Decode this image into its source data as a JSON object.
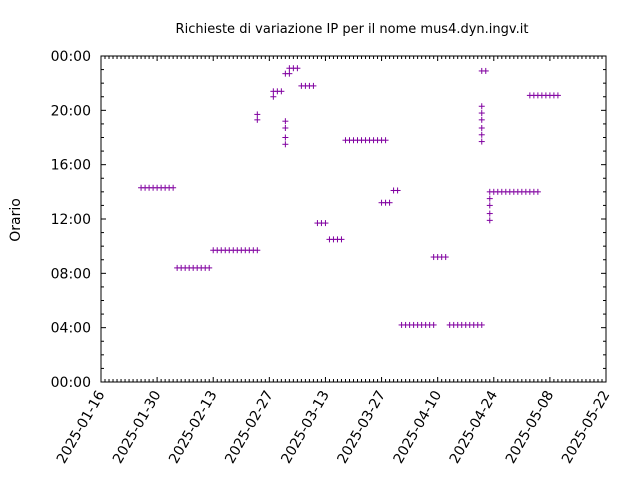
{
  "chart_data": {
    "type": "scatter",
    "title": "Richieste di variazione IP per il nome mus4.dyn.ingv.it",
    "ylabel": "Orario",
    "xlabel": "",
    "marker_color": "#8000a0",
    "grid": false,
    "x_ticks": [
      "2025-01-16",
      "2025-01-30",
      "2025-02-13",
      "2025-02-27",
      "2025-03-13",
      "2025-03-27",
      "2025-04-10",
      "2025-04-24",
      "2025-05-08",
      "2025-05-22"
    ],
    "xlim": [
      "2025-01-16",
      "2025-05-22"
    ],
    "y_ticks": [
      "00:00",
      "04:00",
      "08:00",
      "12:00",
      "16:00",
      "20:00",
      "00:00"
    ],
    "ylim": [
      0,
      24
    ],
    "points": [
      {
        "x": "2025-01-26",
        "y": 14.3
      },
      {
        "x": "2025-01-27",
        "y": 14.3
      },
      {
        "x": "2025-01-28",
        "y": 14.3
      },
      {
        "x": "2025-01-29",
        "y": 14.3
      },
      {
        "x": "2025-01-30",
        "y": 14.3
      },
      {
        "x": "2025-01-31",
        "y": 14.3
      },
      {
        "x": "2025-02-01",
        "y": 14.3
      },
      {
        "x": "2025-02-02",
        "y": 14.3
      },
      {
        "x": "2025-02-03",
        "y": 14.3
      },
      {
        "x": "2025-02-04",
        "y": 8.4
      },
      {
        "x": "2025-02-05",
        "y": 8.4
      },
      {
        "x": "2025-02-06",
        "y": 8.4
      },
      {
        "x": "2025-02-07",
        "y": 8.4
      },
      {
        "x": "2025-02-08",
        "y": 8.4
      },
      {
        "x": "2025-02-09",
        "y": 8.4
      },
      {
        "x": "2025-02-10",
        "y": 8.4
      },
      {
        "x": "2025-02-11",
        "y": 8.4
      },
      {
        "x": "2025-02-12",
        "y": 8.4
      },
      {
        "x": "2025-02-13",
        "y": 9.7
      },
      {
        "x": "2025-02-14",
        "y": 9.7
      },
      {
        "x": "2025-02-15",
        "y": 9.7
      },
      {
        "x": "2025-02-16",
        "y": 9.7
      },
      {
        "x": "2025-02-17",
        "y": 9.7
      },
      {
        "x": "2025-02-18",
        "y": 9.7
      },
      {
        "x": "2025-02-19",
        "y": 9.7
      },
      {
        "x": "2025-02-20",
        "y": 9.7
      },
      {
        "x": "2025-02-21",
        "y": 9.7
      },
      {
        "x": "2025-02-22",
        "y": 9.7
      },
      {
        "x": "2025-02-23",
        "y": 9.7
      },
      {
        "x": "2025-02-24",
        "y": 9.7
      },
      {
        "x": "2025-02-24",
        "y": 19.3
      },
      {
        "x": "2025-02-24",
        "y": 19.7
      },
      {
        "x": "2025-02-28",
        "y": 21.0
      },
      {
        "x": "2025-02-28",
        "y": 21.4
      },
      {
        "x": "2025-03-01",
        "y": 21.4
      },
      {
        "x": "2025-03-02",
        "y": 21.4
      },
      {
        "x": "2025-03-03",
        "y": 17.5
      },
      {
        "x": "2025-03-03",
        "y": 18.0
      },
      {
        "x": "2025-03-03",
        "y": 18.7
      },
      {
        "x": "2025-03-03",
        "y": 19.2
      },
      {
        "x": "2025-03-03",
        "y": 22.7
      },
      {
        "x": "2025-03-04",
        "y": 22.7
      },
      {
        "x": "2025-03-04",
        "y": 23.1
      },
      {
        "x": "2025-03-05",
        "y": 23.1
      },
      {
        "x": "2025-03-06",
        "y": 23.1
      },
      {
        "x": "2025-03-07",
        "y": 21.8
      },
      {
        "x": "2025-03-08",
        "y": 21.8
      },
      {
        "x": "2025-03-09",
        "y": 21.8
      },
      {
        "x": "2025-03-10",
        "y": 21.8
      },
      {
        "x": "2025-03-11",
        "y": 11.7
      },
      {
        "x": "2025-03-12",
        "y": 11.7
      },
      {
        "x": "2025-03-13",
        "y": 11.7
      },
      {
        "x": "2025-03-14",
        "y": 10.5
      },
      {
        "x": "2025-03-15",
        "y": 10.5
      },
      {
        "x": "2025-03-16",
        "y": 10.5
      },
      {
        "x": "2025-03-17",
        "y": 10.5
      },
      {
        "x": "2025-03-18",
        "y": 17.8
      },
      {
        "x": "2025-03-19",
        "y": 17.8
      },
      {
        "x": "2025-03-20",
        "y": 17.8
      },
      {
        "x": "2025-03-21",
        "y": 17.8
      },
      {
        "x": "2025-03-22",
        "y": 17.8
      },
      {
        "x": "2025-03-23",
        "y": 17.8
      },
      {
        "x": "2025-03-24",
        "y": 17.8
      },
      {
        "x": "2025-03-25",
        "y": 17.8
      },
      {
        "x": "2025-03-26",
        "y": 17.8
      },
      {
        "x": "2025-03-27",
        "y": 17.8
      },
      {
        "x": "2025-03-28",
        "y": 17.8
      },
      {
        "x": "2025-03-27",
        "y": 13.2
      },
      {
        "x": "2025-03-28",
        "y": 13.2
      },
      {
        "x": "2025-03-29",
        "y": 13.2
      },
      {
        "x": "2025-03-30",
        "y": 14.1
      },
      {
        "x": "2025-03-31",
        "y": 14.1
      },
      {
        "x": "2025-04-01",
        "y": 4.2
      },
      {
        "x": "2025-04-02",
        "y": 4.2
      },
      {
        "x": "2025-04-03",
        "y": 4.2
      },
      {
        "x": "2025-04-04",
        "y": 4.2
      },
      {
        "x": "2025-04-05",
        "y": 4.2
      },
      {
        "x": "2025-04-06",
        "y": 4.2
      },
      {
        "x": "2025-04-07",
        "y": 4.2
      },
      {
        "x": "2025-04-08",
        "y": 4.2
      },
      {
        "x": "2025-04-09",
        "y": 4.2
      },
      {
        "x": "2025-04-09",
        "y": 9.2
      },
      {
        "x": "2025-04-10",
        "y": 9.2
      },
      {
        "x": "2025-04-11",
        "y": 9.2
      },
      {
        "x": "2025-04-12",
        "y": 9.2
      },
      {
        "x": "2025-04-13",
        "y": 4.2
      },
      {
        "x": "2025-04-14",
        "y": 4.2
      },
      {
        "x": "2025-04-15",
        "y": 4.2
      },
      {
        "x": "2025-04-16",
        "y": 4.2
      },
      {
        "x": "2025-04-17",
        "y": 4.2
      },
      {
        "x": "2025-04-18",
        "y": 4.2
      },
      {
        "x": "2025-04-19",
        "y": 4.2
      },
      {
        "x": "2025-04-20",
        "y": 4.2
      },
      {
        "x": "2025-04-21",
        "y": 4.2
      },
      {
        "x": "2025-04-21",
        "y": 17.7
      },
      {
        "x": "2025-04-21",
        "y": 18.2
      },
      {
        "x": "2025-04-21",
        "y": 18.7
      },
      {
        "x": "2025-04-21",
        "y": 19.3
      },
      {
        "x": "2025-04-21",
        "y": 19.8
      },
      {
        "x": "2025-04-21",
        "y": 20.3
      },
      {
        "x": "2025-04-21",
        "y": 22.9
      },
      {
        "x": "2025-04-22",
        "y": 22.9
      },
      {
        "x": "2025-04-23",
        "y": 11.9
      },
      {
        "x": "2025-04-23",
        "y": 12.4
      },
      {
        "x": "2025-04-23",
        "y": 13.0
      },
      {
        "x": "2025-04-23",
        "y": 13.5
      },
      {
        "x": "2025-04-23",
        "y": 14.0
      },
      {
        "x": "2025-04-24",
        "y": 14.0
      },
      {
        "x": "2025-04-25",
        "y": 14.0
      },
      {
        "x": "2025-04-26",
        "y": 14.0
      },
      {
        "x": "2025-04-27",
        "y": 14.0
      },
      {
        "x": "2025-04-28",
        "y": 14.0
      },
      {
        "x": "2025-04-29",
        "y": 14.0
      },
      {
        "x": "2025-04-30",
        "y": 14.0
      },
      {
        "x": "2025-05-01",
        "y": 14.0
      },
      {
        "x": "2025-05-02",
        "y": 14.0
      },
      {
        "x": "2025-05-03",
        "y": 14.0
      },
      {
        "x": "2025-05-04",
        "y": 14.0
      },
      {
        "x": "2025-05-05",
        "y": 14.0
      },
      {
        "x": "2025-05-03",
        "y": 21.1
      },
      {
        "x": "2025-05-04",
        "y": 21.1
      },
      {
        "x": "2025-05-05",
        "y": 21.1
      },
      {
        "x": "2025-05-06",
        "y": 21.1
      },
      {
        "x": "2025-05-07",
        "y": 21.1
      },
      {
        "x": "2025-05-08",
        "y": 21.1
      },
      {
        "x": "2025-05-09",
        "y": 21.1
      },
      {
        "x": "2025-05-10",
        "y": 21.1
      }
    ]
  }
}
